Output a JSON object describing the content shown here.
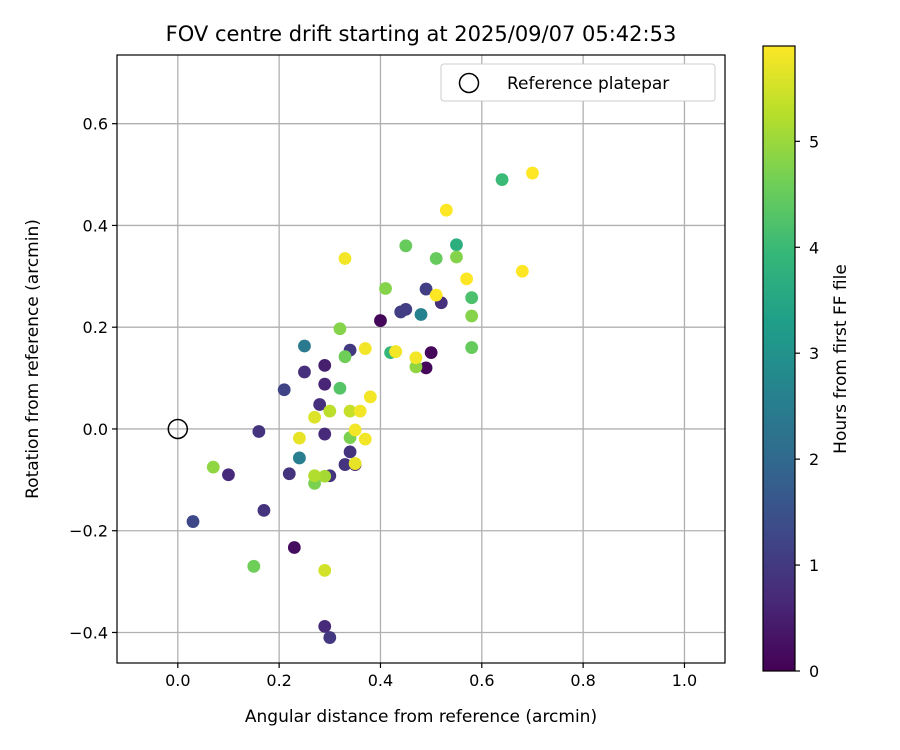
{
  "chart_data": {
    "type": "scatter",
    "title": "FOV centre drift starting at 2025/09/07 05:42:53",
    "xlabel": "Angular distance from reference (arcmin)",
    "ylabel": "Rotation from reference (arcmin)",
    "xlim": [
      -0.12,
      1.08
    ],
    "ylim": [
      -0.46,
      0.735
    ],
    "x_ticks": [
      0.0,
      0.2,
      0.4,
      0.6,
      0.8,
      1.0
    ],
    "x_tick_labels": [
      "0.0",
      "0.2",
      "0.4",
      "0.6",
      "0.8",
      "1.0"
    ],
    "y_ticks": [
      -0.4,
      -0.2,
      0.0,
      0.2,
      0.4,
      0.6
    ],
    "y_tick_labels": [
      "−0.4",
      "−0.2",
      "0.0",
      "0.2",
      "0.4",
      "0.6"
    ],
    "grid": true,
    "legend": {
      "placement": "upper-right",
      "entries": [
        {
          "label": "Reference platepar",
          "marker": "open-circle"
        }
      ]
    },
    "reference_point": {
      "x": 0.0,
      "y": 0.0
    },
    "colorbar": {
      "label": "Hours from first FF file",
      "colormap": "viridis",
      "range": [
        0,
        5.9
      ],
      "ticks": [
        0,
        1,
        2,
        3,
        4,
        5
      ],
      "tick_labels": [
        "0",
        "1",
        "2",
        "3",
        "4",
        "5"
      ]
    },
    "colors": {
      "viridis": [
        "#440154",
        "#482878",
        "#3e4989",
        "#31688e",
        "#26828e",
        "#1f9e89",
        "#35b779",
        "#6ece58",
        "#b5de2b",
        "#fde725"
      ]
    },
    "points": [
      {
        "x": 0.4,
        "y": 0.213,
        "hours": 0.1
      },
      {
        "x": 0.5,
        "y": 0.15,
        "hours": 0.1
      },
      {
        "x": 0.49,
        "y": 0.12,
        "hours": 0.1
      },
      {
        "x": 0.23,
        "y": -0.233,
        "hours": 0.2
      },
      {
        "x": 0.29,
        "y": 0.125,
        "hours": 0.5
      },
      {
        "x": 0.29,
        "y": 0.088,
        "hours": 0.6
      },
      {
        "x": 0.29,
        "y": -0.01,
        "hours": 0.7
      },
      {
        "x": 0.1,
        "y": -0.09,
        "hours": 0.7
      },
      {
        "x": 0.35,
        "y": -0.07,
        "hours": 0.6
      },
      {
        "x": 0.29,
        "y": -0.388,
        "hours": 0.7
      },
      {
        "x": 0.52,
        "y": 0.248,
        "hours": 0.8
      },
      {
        "x": 0.25,
        "y": 0.112,
        "hours": 0.8
      },
      {
        "x": 0.28,
        "y": 0.048,
        "hours": 0.8
      },
      {
        "x": 0.17,
        "y": -0.16,
        "hours": 0.9
      },
      {
        "x": 0.16,
        "y": -0.005,
        "hours": 0.9
      },
      {
        "x": 0.22,
        "y": -0.088,
        "hours": 0.9
      },
      {
        "x": 0.34,
        "y": -0.045,
        "hours": 0.9
      },
      {
        "x": 0.3,
        "y": -0.092,
        "hours": 0.9
      },
      {
        "x": 0.33,
        "y": -0.07,
        "hours": 0.9
      },
      {
        "x": 0.3,
        "y": -0.41,
        "hours": 1.0
      },
      {
        "x": 0.34,
        "y": 0.155,
        "hours": 1.0
      },
      {
        "x": 0.44,
        "y": 0.23,
        "hours": 1.1
      },
      {
        "x": 0.45,
        "y": 0.235,
        "hours": 1.1
      },
      {
        "x": 0.49,
        "y": 0.275,
        "hours": 1.1
      },
      {
        "x": 0.21,
        "y": 0.077,
        "hours": 1.2
      },
      {
        "x": 0.03,
        "y": -0.182,
        "hours": 1.3
      },
      {
        "x": 0.25,
        "y": 0.163,
        "hours": 2.4
      },
      {
        "x": 0.24,
        "y": -0.057,
        "hours": 2.5
      },
      {
        "x": 0.48,
        "y": 0.225,
        "hours": 2.6
      },
      {
        "x": 0.55,
        "y": 0.362,
        "hours": 3.7
      },
      {
        "x": 0.42,
        "y": 0.15,
        "hours": 3.9
      },
      {
        "x": 0.64,
        "y": 0.49,
        "hours": 4.0
      },
      {
        "x": 0.58,
        "y": 0.258,
        "hours": 4.2
      },
      {
        "x": 0.32,
        "y": 0.08,
        "hours": 4.3
      },
      {
        "x": 0.45,
        "y": 0.36,
        "hours": 4.5
      },
      {
        "x": 0.51,
        "y": 0.335,
        "hours": 4.5
      },
      {
        "x": 0.58,
        "y": 0.16,
        "hours": 4.5
      },
      {
        "x": 0.33,
        "y": 0.142,
        "hours": 4.6
      },
      {
        "x": 0.15,
        "y": -0.27,
        "hours": 4.6
      },
      {
        "x": 0.34,
        "y": -0.017,
        "hours": 4.7
      },
      {
        "x": 0.27,
        "y": -0.107,
        "hours": 4.7
      },
      {
        "x": 0.41,
        "y": 0.276,
        "hours": 4.8
      },
      {
        "x": 0.55,
        "y": 0.338,
        "hours": 4.8
      },
      {
        "x": 0.58,
        "y": 0.222,
        "hours": 4.8
      },
      {
        "x": 0.32,
        "y": 0.197,
        "hours": 4.8
      },
      {
        "x": 0.07,
        "y": -0.075,
        "hours": 4.9
      },
      {
        "x": 0.47,
        "y": 0.122,
        "hours": 4.9
      },
      {
        "x": 0.29,
        "y": -0.093,
        "hours": 5.1
      },
      {
        "x": 0.27,
        "y": -0.092,
        "hours": 5.2
      },
      {
        "x": 0.43,
        "y": 0.152,
        "hours": 5.2
      },
      {
        "x": 0.3,
        "y": 0.035,
        "hours": 5.3
      },
      {
        "x": 0.34,
        "y": 0.035,
        "hours": 5.4
      },
      {
        "x": 0.29,
        "y": -0.278,
        "hours": 5.5
      },
      {
        "x": 0.27,
        "y": 0.023,
        "hours": 5.6
      },
      {
        "x": 0.24,
        "y": -0.018,
        "hours": 5.7
      },
      {
        "x": 0.35,
        "y": -0.068,
        "hours": 5.7
      },
      {
        "x": 0.33,
        "y": 0.335,
        "hours": 5.8
      },
      {
        "x": 0.43,
        "y": 0.152,
        "hours": 5.8
      },
      {
        "x": 0.47,
        "y": 0.14,
        "hours": 5.8
      },
      {
        "x": 0.37,
        "y": 0.158,
        "hours": 5.8
      },
      {
        "x": 0.38,
        "y": 0.063,
        "hours": 5.8
      },
      {
        "x": 0.36,
        "y": 0.035,
        "hours": 5.8
      },
      {
        "x": 0.35,
        "y": -0.002,
        "hours": 5.8
      },
      {
        "x": 0.37,
        "y": -0.02,
        "hours": 5.8
      },
      {
        "x": 0.51,
        "y": 0.263,
        "hours": 5.9
      },
      {
        "x": 0.53,
        "y": 0.43,
        "hours": 5.9
      },
      {
        "x": 0.57,
        "y": 0.295,
        "hours": 5.9
      },
      {
        "x": 0.68,
        "y": 0.31,
        "hours": 5.9
      },
      {
        "x": 0.7,
        "y": 0.503,
        "hours": 5.9
      }
    ]
  }
}
